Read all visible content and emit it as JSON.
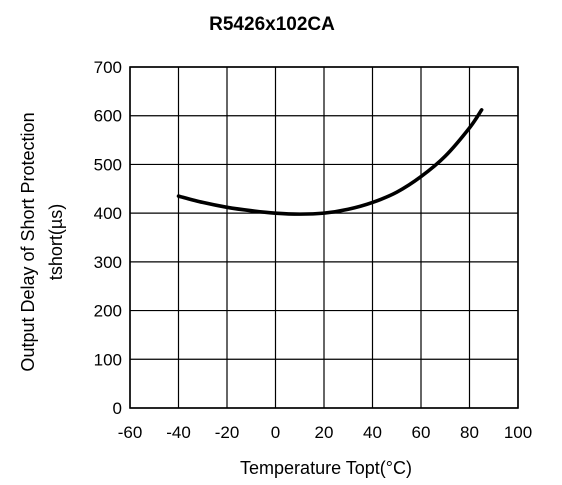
{
  "chart_data": {
    "type": "line",
    "title": "R5426x102CA",
    "xlabel": "Temperature Topt(°C)",
    "ylabel": [
      "Output Delay of Short Protection",
      "tshort(µs)"
    ],
    "xlim": [
      -60,
      100
    ],
    "ylim": [
      0,
      700
    ],
    "xticks": [
      -60,
      -40,
      -20,
      0,
      20,
      40,
      60,
      80,
      100
    ],
    "yticks": [
      0,
      100,
      200,
      300,
      400,
      500,
      600,
      700
    ],
    "grid": true,
    "legend": "none",
    "series": [
      {
        "x": [
          -40,
          -30,
          -20,
          -10,
          0,
          10,
          20,
          30,
          40,
          50,
          60,
          70,
          80,
          85
        ],
        "y": [
          435,
          422,
          412,
          405,
          400,
          398,
          400,
          408,
          422,
          443,
          475,
          517,
          575,
          612
        ]
      }
    ]
  }
}
